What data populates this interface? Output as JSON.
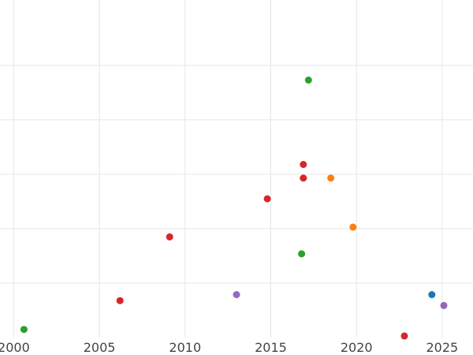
{
  "chart_data": {
    "type": "scatter",
    "title": "",
    "xlabel": "",
    "ylabel": "",
    "xlim": [
      1999.2,
      2026.8
    ],
    "ylim": [
      0,
      62
    ],
    "grid": true,
    "x_ticks": [
      2000,
      2005,
      2010,
      2015,
      2020,
      2025
    ],
    "x_tick_labels": [
      "2000",
      "2005",
      "2010",
      "2015",
      "2020",
      "2025"
    ],
    "y_grid_values": [
      10,
      20,
      30,
      40,
      50
    ],
    "y_tick_labels": [],
    "colors": {
      "blue": "#1f77b4",
      "orange": "#ff7f0e",
      "green": "#2ca02c",
      "red": "#d62728",
      "purple": "#9467bd"
    },
    "series": [
      {
        "color": "#2ca02c",
        "points": [
          [
            2000.6,
            1.5
          ],
          [
            2017.2,
            47.3
          ],
          [
            2016.8,
            15.4
          ]
        ]
      },
      {
        "color": "#d62728",
        "points": [
          [
            2006.2,
            6.8
          ],
          [
            2009.1,
            18.5
          ],
          [
            2014.8,
            25.5
          ],
          [
            2016.9,
            29.3
          ],
          [
            2016.9,
            31.8
          ],
          [
            2022.8,
            0.3
          ]
        ]
      },
      {
        "color": "#ff7f0e",
        "points": [
          [
            2018.5,
            29.3
          ],
          [
            2019.8,
            20.3
          ]
        ]
      },
      {
        "color": "#9467bd",
        "points": [
          [
            2013.0,
            7.9
          ],
          [
            2025.1,
            5.9
          ]
        ]
      },
      {
        "color": "#1f77b4",
        "points": [
          [
            2024.4,
            7.9
          ]
        ]
      }
    ]
  }
}
